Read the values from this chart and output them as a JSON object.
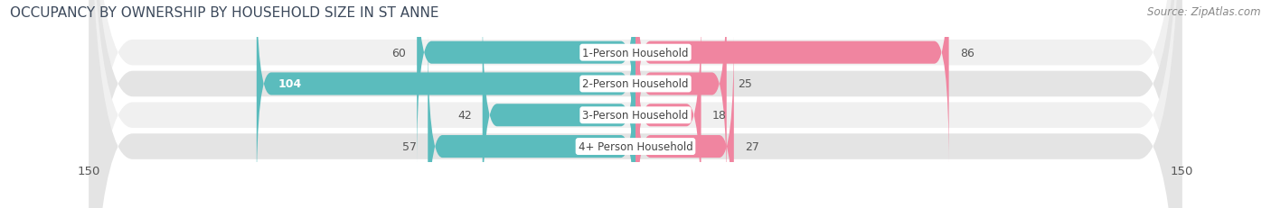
{
  "title": "OCCUPANCY BY OWNERSHIP BY HOUSEHOLD SIZE IN ST ANNE",
  "source": "Source: ZipAtlas.com",
  "categories": [
    "1-Person Household",
    "2-Person Household",
    "3-Person Household",
    "4+ Person Household"
  ],
  "owner_values": [
    60,
    104,
    42,
    57
  ],
  "renter_values": [
    86,
    25,
    18,
    27
  ],
  "max_scale": 150,
  "owner_color": "#5bbcbd",
  "renter_color": "#f085a0",
  "row_bg_light": "#f0f0f0",
  "row_bg_dark": "#e4e4e4",
  "fig_bg_color": "#ffffff",
  "title_color": "#3d4a5c",
  "source_color": "#888888",
  "label_color": "#555555",
  "white_label_color": "#ffffff",
  "title_fontsize": 11,
  "source_fontsize": 8.5,
  "tick_fontsize": 9.5,
  "bar_label_fontsize": 9,
  "category_fontsize": 8.5,
  "legend_fontsize": 9
}
